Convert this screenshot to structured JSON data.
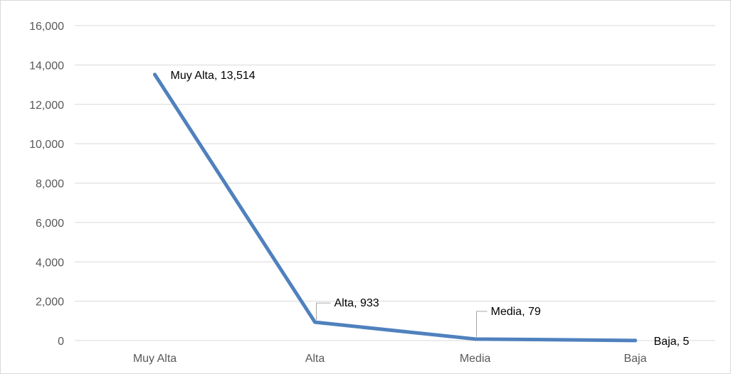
{
  "chart_data": {
    "type": "line",
    "categories": [
      "Muy Alta",
      "Alta",
      "Media",
      "Baja"
    ],
    "series": [
      {
        "values": [
          13514,
          933,
          79,
          5
        ],
        "color": "#4f81bd"
      }
    ],
    "data_labels": [
      "Muy Alta, 13,514",
      "Alta, 933",
      "Media, 79",
      "Baja, 5"
    ],
    "y_ticks": [
      "0",
      "2,000",
      "4,000",
      "6,000",
      "8,000",
      "10,000",
      "12,000",
      "14,000",
      "16,000"
    ],
    "ylim": [
      0,
      16000
    ],
    "grid": true,
    "legend": "none"
  }
}
